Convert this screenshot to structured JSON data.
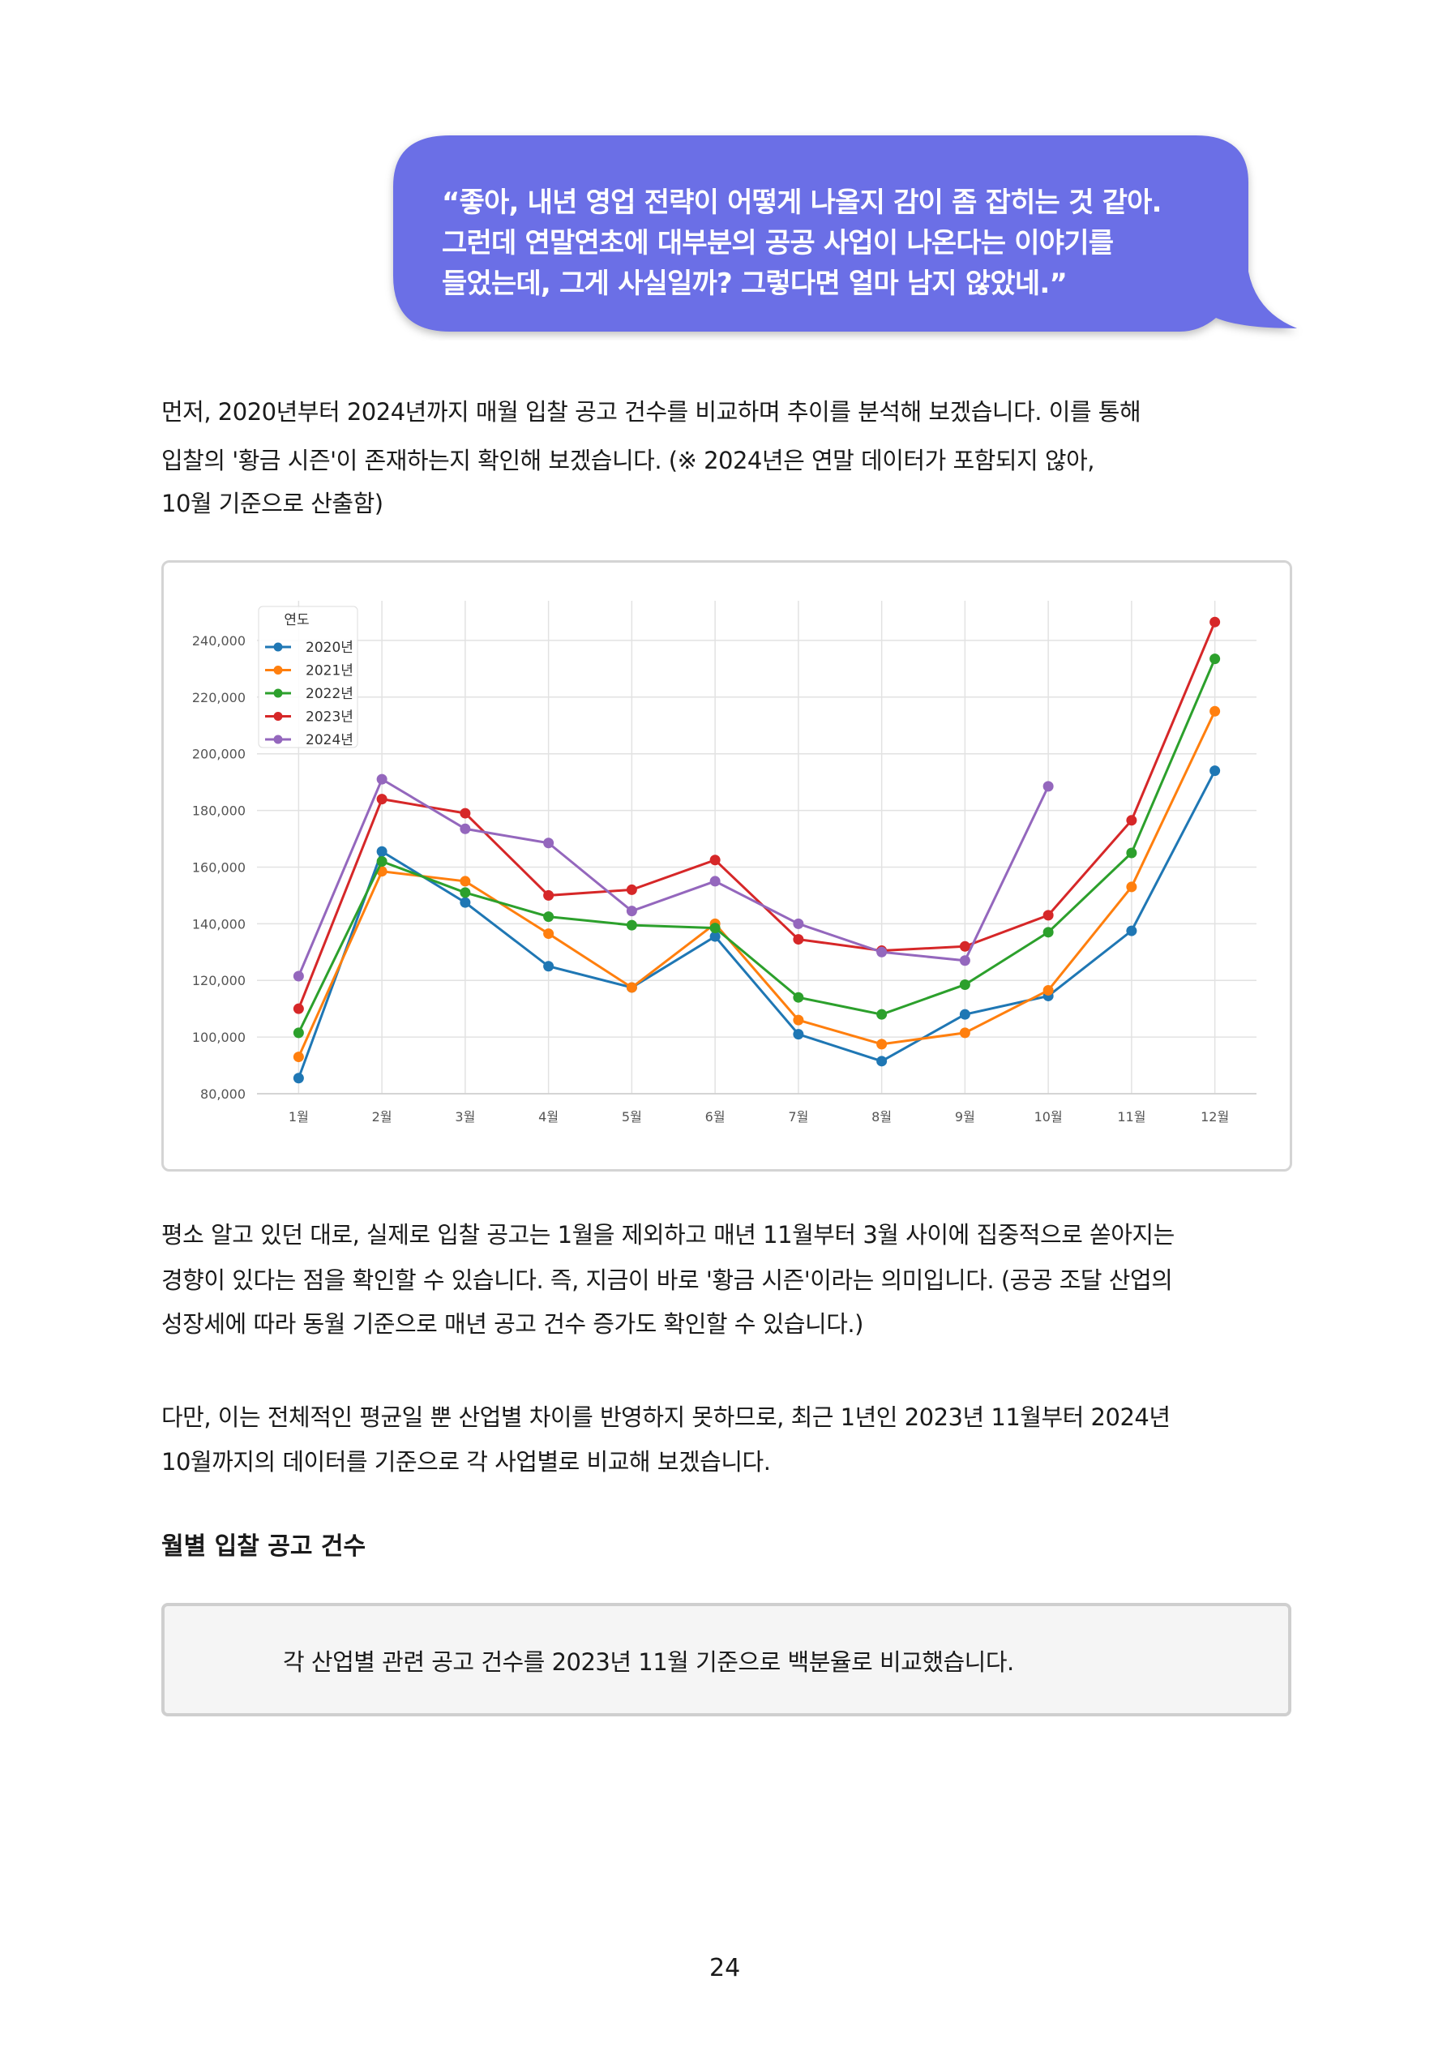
{
  "bubble": {
    "lines": [
      "“좋아, 내년 영업 전략이 어떻게 나올지 감이 좀 잡히는 것 같아.",
      "그런데 연말연초에 대부분의 공공 사업이 나온다는 이야기를",
      "들었는데, 그게 사실일까? 그렇다면 얼마 남지 않았네.”"
    ]
  },
  "paragraphs": [
    [
      "먼저, 2020년부터 2024년까지 매월 입찰 공고 건수를 비교하며 추이를 분석해 보겠습니다. 이를 통해",
      "입찰의 '황금 시즌'이 존재하는지 확인해 보겠습니다. (※ 2024년은 연말 데이터가 포함되지 않아,",
      "10월 기준으로 산출함)"
    ],
    [
      "평소 알고 있던 대로, 실제로 입찰 공고는 1월을 제외하고 매년 11월부터 3월 사이에 집중적으로 쏟아지는",
      "경향이 있다는 점을 확인할 수 있습니다. 즉, 지금이 바로 '황금 시즌'이라는 의미입니다. (공공 조달 산업의",
      "성장세에 따라 동월 기준으로 매년 공고 건수 증가도 확인할 수 있습니다.)"
    ],
    [
      "다만, 이는 전체적인 평균일 뿐 산업별 차이를 반영하지 못하므로, 최근 1년인 2023년 11월부터 2024년",
      "10월까지의 데이터를 기준으로 각 사업별로 비교해 보겠습니다."
    ]
  ],
  "chart_data": {
    "type": "line",
    "categories": [
      "1월",
      "2월",
      "3월",
      "4월",
      "5월",
      "6월",
      "7월",
      "8월",
      "9월",
      "10월",
      "11월",
      "12월"
    ],
    "legend_title": "연도",
    "legend": "upper left",
    "grid": true,
    "ylim": [
      80000,
      254000
    ],
    "yticks": [
      {
        "value": 80000,
        "label": "80,000"
      },
      {
        "value": 100000,
        "label": "100,000"
      },
      {
        "value": 120000,
        "label": "120,000"
      },
      {
        "value": 140000,
        "label": "140,000"
      },
      {
        "value": 160000,
        "label": "160,000"
      },
      {
        "value": 180000,
        "label": "180,000"
      },
      {
        "value": 200000,
        "label": "200,000"
      },
      {
        "value": 220000,
        "label": "220,000"
      },
      {
        "value": 240000,
        "label": "240,000"
      }
    ],
    "series": [
      {
        "name": "2020년",
        "color": "#1f77b4",
        "values": [
          85500,
          165500,
          147500,
          125000,
          117500,
          135500,
          101000,
          91500,
          108000,
          114500,
          137500,
          194000
        ]
      },
      {
        "name": "2021년",
        "color": "#ff7f0e",
        "values": [
          93000,
          158500,
          155000,
          136500,
          117500,
          140000,
          106000,
          97500,
          101500,
          116500,
          153000,
          215000
        ]
      },
      {
        "name": "2022년",
        "color": "#2ca02c",
        "values": [
          101500,
          162000,
          151000,
          142500,
          139500,
          138500,
          114000,
          108000,
          118500,
          137000,
          165000,
          233500
        ]
      },
      {
        "name": "2023년",
        "color": "#d62728",
        "values": [
          110000,
          184000,
          179000,
          150000,
          152000,
          162500,
          134500,
          130500,
          132000,
          143000,
          176500,
          246500
        ]
      },
      {
        "name": "2024년",
        "color": "#9467bd",
        "values": [
          121500,
          191000,
          173500,
          168500,
          144500,
          155000,
          140000,
          130000,
          127000,
          188500,
          null,
          null
        ]
      }
    ]
  },
  "heading": "월별 입찰 공고 건수",
  "note": "각 산업별 관련 공고 건수를 2023년 11월 기준으로 백분율로 비교했습니다.",
  "page_number": "24"
}
